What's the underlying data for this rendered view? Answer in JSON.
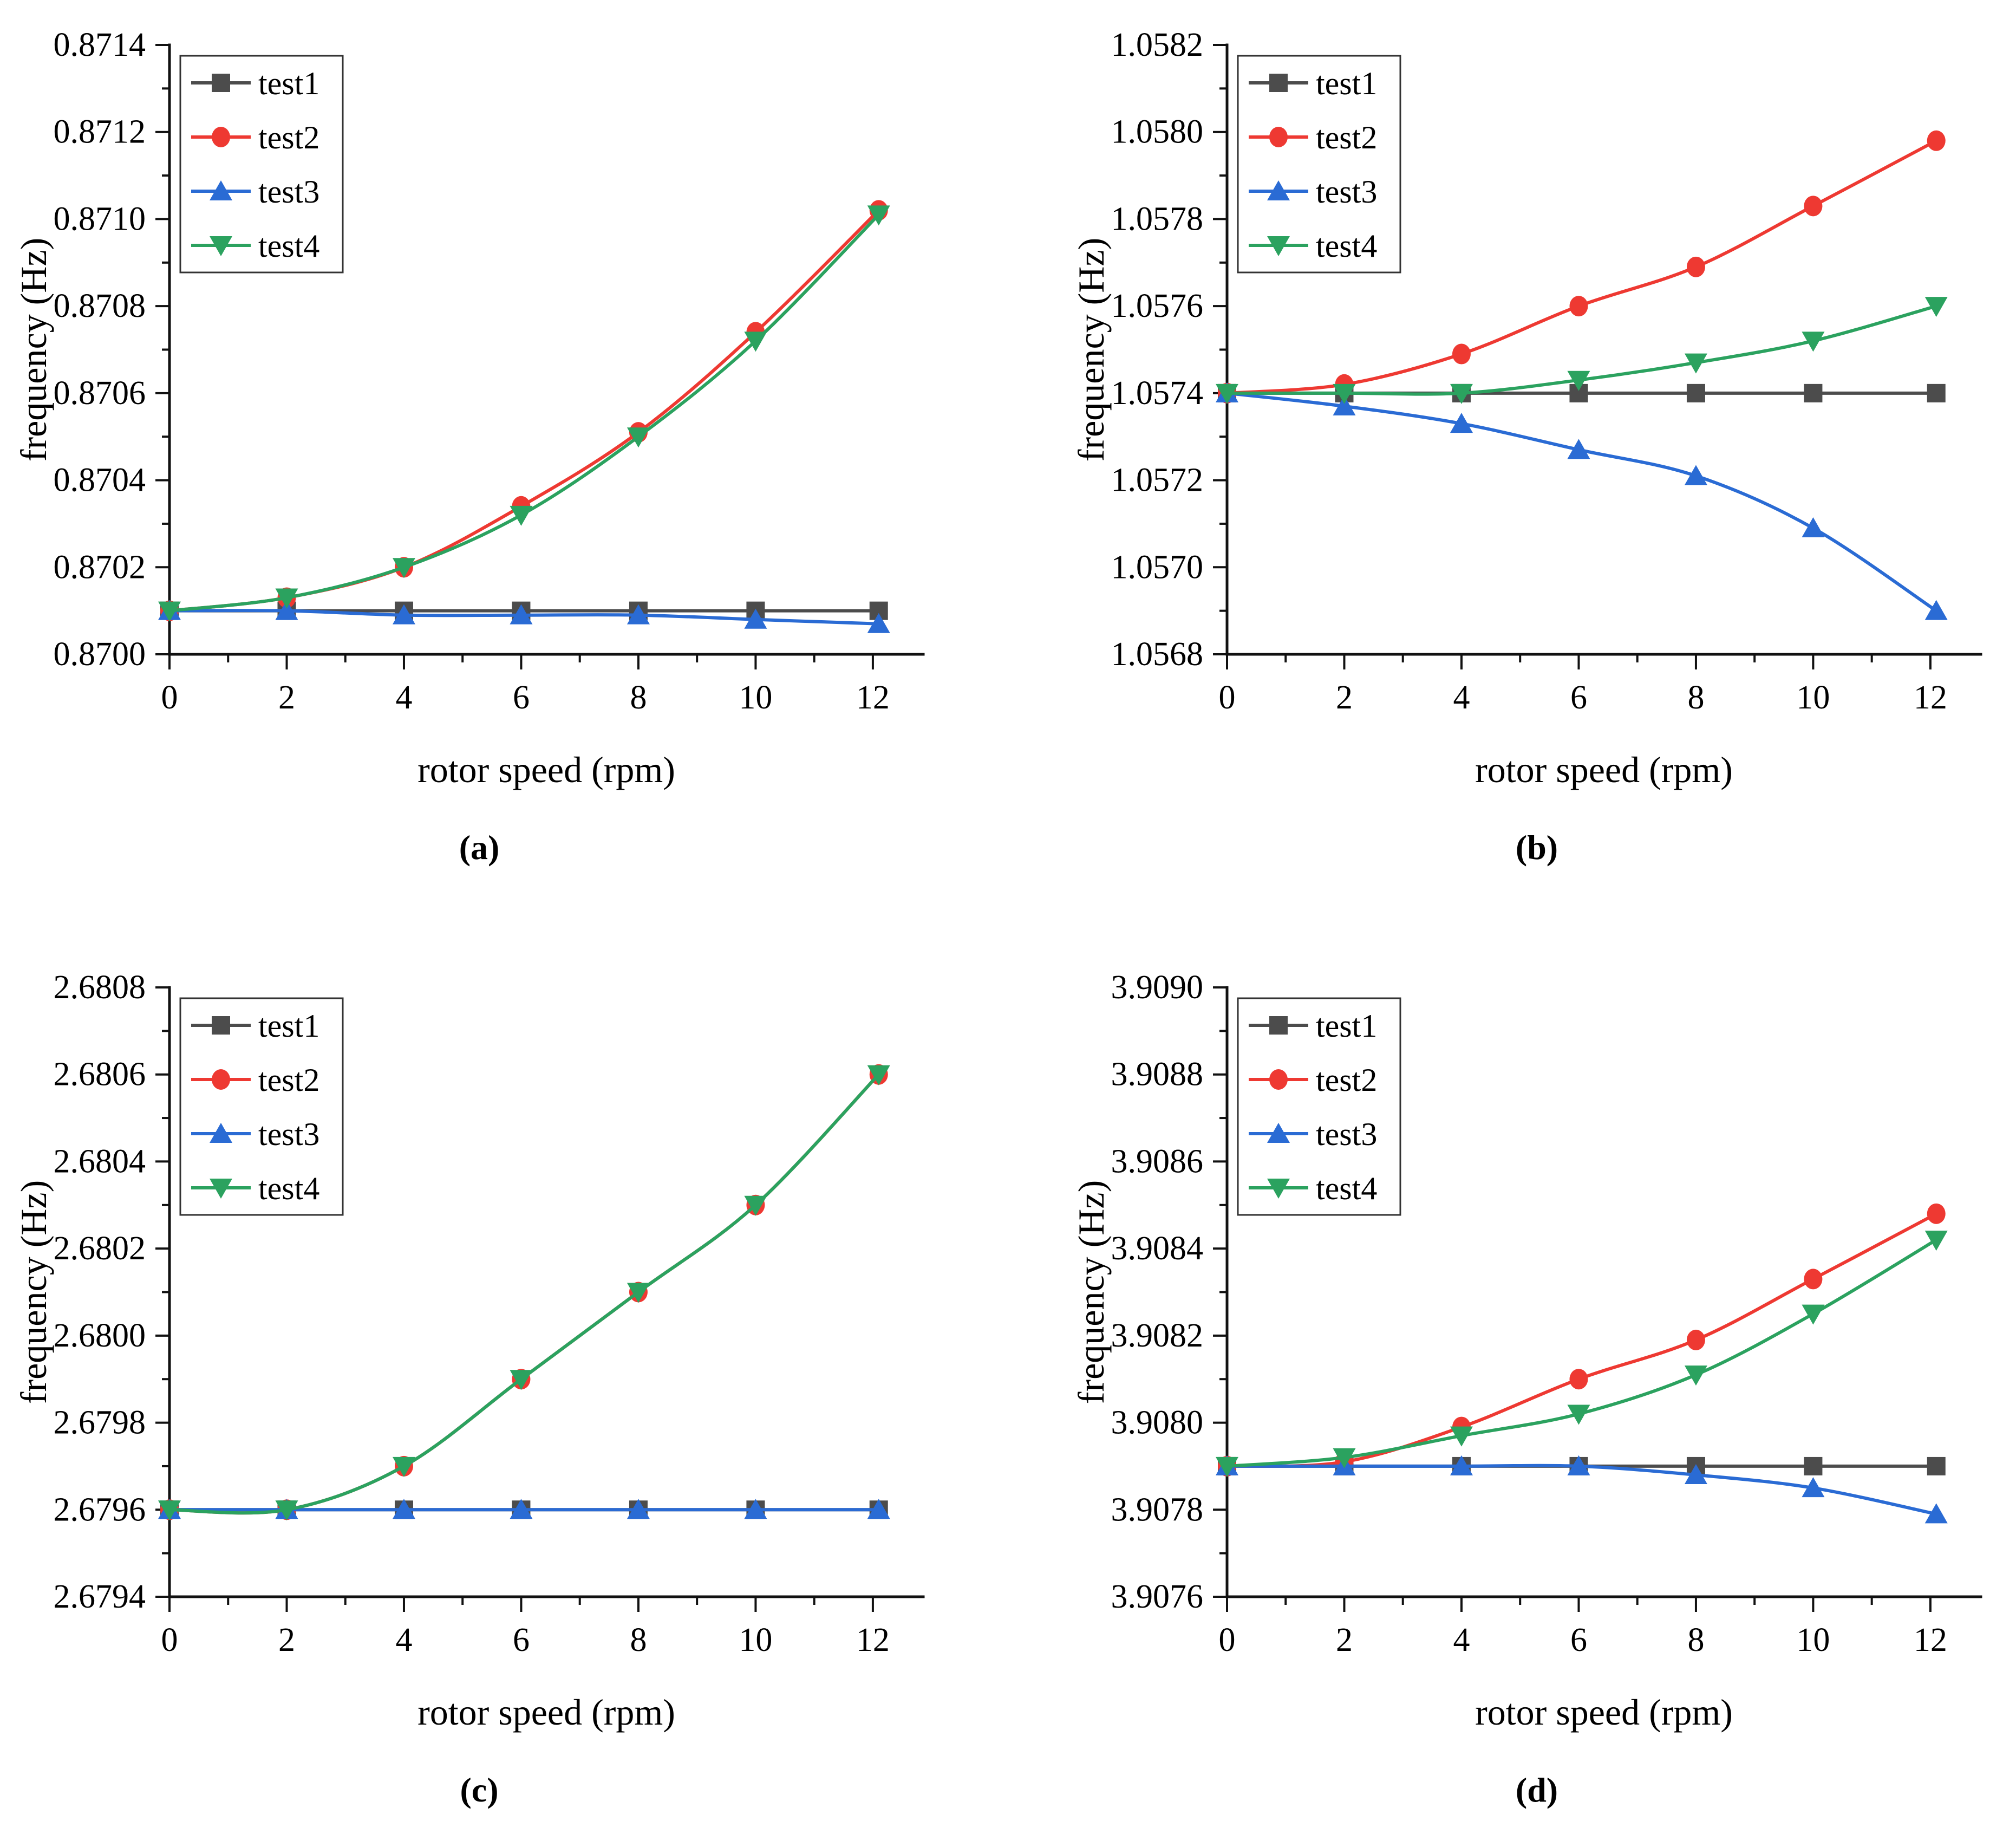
{
  "figure": {
    "xlabel": "rotor speed (rpm)",
    "ylabel": "frequency (Hz)",
    "legend_labels": [
      "test1",
      "test2",
      "test3",
      "test4"
    ],
    "series_colors": {
      "test1": "#4c4c4c",
      "test2": "#ee3932",
      "test3": "#2a6bd4",
      "test4": "#2ba25f"
    },
    "axis_color": "#111111",
    "legend_border_color": "#333333"
  },
  "chart_data": [
    {
      "id": "a",
      "caption": "(a)",
      "type": "line",
      "title": "",
      "xlabel": "rotor speed (rpm)",
      "ylabel": "frequency (Hz)",
      "xlim": [
        0,
        12.86
      ],
      "ylim": [
        0.87,
        0.8714
      ],
      "xticks": [
        0,
        2,
        4,
        6,
        8,
        10,
        12
      ],
      "xminor": [
        1,
        3,
        5,
        7,
        9,
        11
      ],
      "ytick_step": 0.0002,
      "ytick_decimals": 4,
      "grid": false,
      "legend_position": "top-left",
      "x": [
        0,
        2,
        4,
        6,
        8,
        10,
        12.1
      ],
      "series": [
        {
          "name": "test1",
          "color": "#4c4c4c",
          "marker": "square",
          "values": [
            0.8701,
            0.8701,
            0.8701,
            0.8701,
            0.8701,
            0.8701,
            0.8701
          ]
        },
        {
          "name": "test2",
          "color": "#ee3932",
          "marker": "circle",
          "values": [
            0.8701,
            0.87013,
            0.8702,
            0.87034,
            0.87051,
            0.87074,
            0.87102
          ]
        },
        {
          "name": "test3",
          "color": "#2a6bd4",
          "marker": "triangle-up",
          "values": [
            0.8701,
            0.8701,
            0.87009,
            0.87009,
            0.87009,
            0.87008,
            0.87007
          ]
        },
        {
          "name": "test4",
          "color": "#2ba25f",
          "marker": "triangle-down",
          "values": [
            0.8701,
            0.87013,
            0.8702,
            0.87032,
            0.8705,
            0.87072,
            0.87101
          ]
        }
      ]
    },
    {
      "id": "b",
      "caption": "(b)",
      "type": "line",
      "title": "",
      "xlabel": "rotor speed (rpm)",
      "ylabel": "frequency (Hz)",
      "xlim": [
        0,
        12.86
      ],
      "ylim": [
        1.0568,
        1.0582
      ],
      "xticks": [
        0,
        2,
        4,
        6,
        8,
        10,
        12
      ],
      "xminor": [
        1,
        3,
        5,
        7,
        9,
        11
      ],
      "ytick_step": 0.0002,
      "ytick_decimals": 4,
      "grid": false,
      "legend_position": "top-left",
      "x": [
        0,
        2,
        4,
        6,
        8,
        10,
        12.1
      ],
      "series": [
        {
          "name": "test1",
          "color": "#4c4c4c",
          "marker": "square",
          "values": [
            1.0574,
            1.0574,
            1.0574,
            1.0574,
            1.0574,
            1.0574,
            1.0574
          ]
        },
        {
          "name": "test2",
          "color": "#ee3932",
          "marker": "circle",
          "values": [
            1.0574,
            1.05742,
            1.05749,
            1.0576,
            1.05769,
            1.05783,
            1.05798
          ]
        },
        {
          "name": "test3",
          "color": "#2a6bd4",
          "marker": "triangle-up",
          "values": [
            1.0574,
            1.05737,
            1.05733,
            1.05727,
            1.05721,
            1.05709,
            1.0569
          ]
        },
        {
          "name": "test4",
          "color": "#2ba25f",
          "marker": "triangle-down",
          "values": [
            1.0574,
            1.0574,
            1.0574,
            1.05743,
            1.05747,
            1.05752,
            1.0576
          ]
        }
      ]
    },
    {
      "id": "c",
      "caption": "(c)",
      "type": "line",
      "title": "",
      "xlabel": "rotor speed (rpm)",
      "ylabel": "frequency (Hz)",
      "xlim": [
        0,
        12.86
      ],
      "ylim": [
        2.6794,
        2.6808
      ],
      "xticks": [
        0,
        2,
        4,
        6,
        8,
        10,
        12
      ],
      "xminor": [
        1,
        3,
        5,
        7,
        9,
        11
      ],
      "ytick_step": 0.0002,
      "ytick_decimals": 4,
      "grid": false,
      "legend_position": "top-left",
      "x": [
        0,
        2,
        4,
        6,
        8,
        10,
        12.1
      ],
      "series": [
        {
          "name": "test1",
          "color": "#4c4c4c",
          "marker": "square",
          "values": [
            2.6796,
            2.6796,
            2.6796,
            2.6796,
            2.6796,
            2.6796,
            2.6796
          ]
        },
        {
          "name": "test2",
          "color": "#ee3932",
          "marker": "circle",
          "values": [
            2.6796,
            2.6796,
            2.6797,
            2.6799,
            2.6801,
            2.6803,
            2.6806
          ]
        },
        {
          "name": "test3",
          "color": "#2a6bd4",
          "marker": "triangle-up",
          "values": [
            2.6796,
            2.6796,
            2.6796,
            2.6796,
            2.6796,
            2.6796,
            2.6796
          ]
        },
        {
          "name": "test4",
          "color": "#2ba25f",
          "marker": "triangle-down",
          "values": [
            2.6796,
            2.6796,
            2.6797,
            2.6799,
            2.6801,
            2.6803,
            2.6806
          ]
        }
      ]
    },
    {
      "id": "d",
      "caption": "(d)",
      "type": "line",
      "title": "",
      "xlabel": "rotor speed (rpm)",
      "ylabel": "frequency (Hz)",
      "xlim": [
        0,
        12.86
      ],
      "ylim": [
        3.9076,
        3.909
      ],
      "xticks": [
        0,
        2,
        4,
        6,
        8,
        10,
        12
      ],
      "xminor": [
        1,
        3,
        5,
        7,
        9,
        11
      ],
      "ytick_step": 0.0002,
      "ytick_decimals": 4,
      "grid": false,
      "legend_position": "top-left",
      "x": [
        0,
        2,
        4,
        6,
        8,
        10,
        12.1
      ],
      "series": [
        {
          "name": "test1",
          "color": "#4c4c4c",
          "marker": "square",
          "values": [
            3.9079,
            3.9079,
            3.9079,
            3.9079,
            3.9079,
            3.9079,
            3.9079
          ]
        },
        {
          "name": "test2",
          "color": "#ee3932",
          "marker": "circle",
          "values": [
            3.9079,
            3.90791,
            3.90799,
            3.9081,
            3.90819,
            3.90833,
            3.90848
          ]
        },
        {
          "name": "test3",
          "color": "#2a6bd4",
          "marker": "triangle-up",
          "values": [
            3.9079,
            3.9079,
            3.9079,
            3.9079,
            3.90788,
            3.90785,
            3.90779
          ]
        },
        {
          "name": "test4",
          "color": "#2ba25f",
          "marker": "triangle-down",
          "values": [
            3.9079,
            3.90792,
            3.90797,
            3.90802,
            3.90811,
            3.90825,
            3.90842
          ]
        }
      ]
    }
  ]
}
